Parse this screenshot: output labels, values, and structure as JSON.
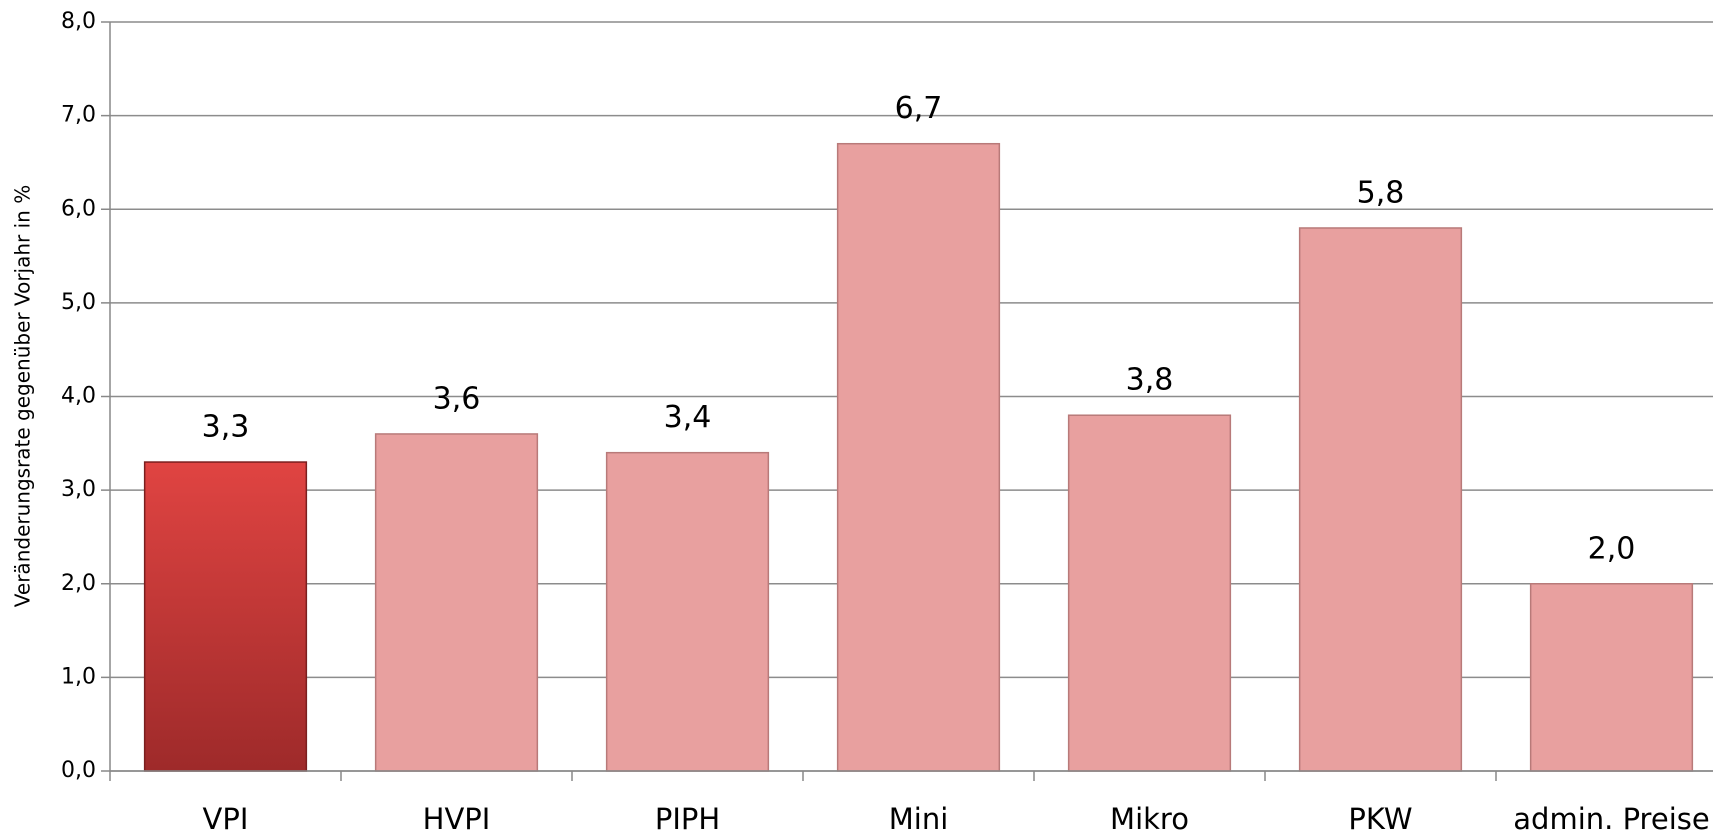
{
  "chart_data": {
    "type": "bar",
    "y_label": "Veränderungsrate gegenüber Vorjahr in %",
    "categories": [
      "VPI",
      "HVPI",
      "PIPH",
      "Mini",
      "Mikro",
      "PKW",
      "admin. Preise"
    ],
    "values": [
      3.3,
      3.6,
      3.4,
      6.7,
      3.8,
      5.8,
      2.0
    ],
    "value_labels": [
      "3,3",
      "3,6",
      "3,4",
      "6,7",
      "3,8",
      "5,8",
      "2,0"
    ],
    "colors": [
      "#c9393a",
      "#e8a09f",
      "#e8a09f",
      "#e8a09f",
      "#e8a09f",
      "#e8a09f",
      "#e8a09f"
    ],
    "ylim": [
      0,
      8
    ],
    "yticks": [
      {
        "value": 0,
        "label": "0,0"
      },
      {
        "value": 1,
        "label": "1,0"
      },
      {
        "value": 2,
        "label": "2,0"
      },
      {
        "value": 3,
        "label": "3,0"
      },
      {
        "value": 4,
        "label": "4,0"
      },
      {
        "value": 5,
        "label": "5,0"
      },
      {
        "value": 6,
        "label": "6,0"
      },
      {
        "value": 7,
        "label": "7,0"
      },
      {
        "value": 8,
        "label": "8,0"
      }
    ],
    "grid": true
  }
}
